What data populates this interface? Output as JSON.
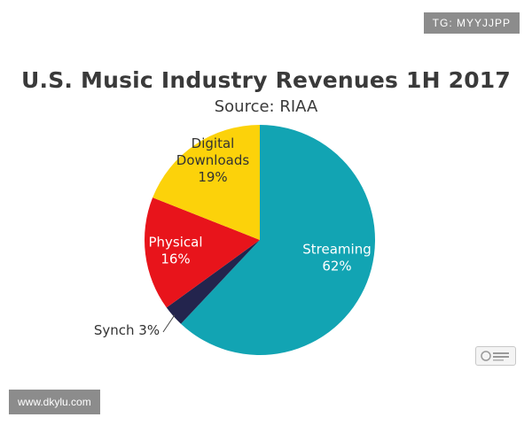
{
  "watermarks": {
    "top": "TG: MYYJJPP",
    "bottom": "www.dkylu.com"
  },
  "chart_data": {
    "type": "pie",
    "title": "U.S. Music Industry Revenues 1H 2017",
    "subtitle": "Source: RIAA",
    "slices": [
      {
        "name": "Streaming",
        "value": 62,
        "label": "62%",
        "color": "#12a4b3",
        "text_color": "#ffffff"
      },
      {
        "name": "Synch",
        "value": 3,
        "label": "3%",
        "color": "#23244d",
        "text_color": "#333333"
      },
      {
        "name": "Physical",
        "value": 16,
        "label": "16%",
        "color": "#e8141b",
        "text_color": "#ffffff"
      },
      {
        "name": "Digital Downloads",
        "value": 19,
        "label": "19%",
        "color": "#fcd20a",
        "text_color": "#333333"
      }
    ],
    "legend": "none"
  }
}
